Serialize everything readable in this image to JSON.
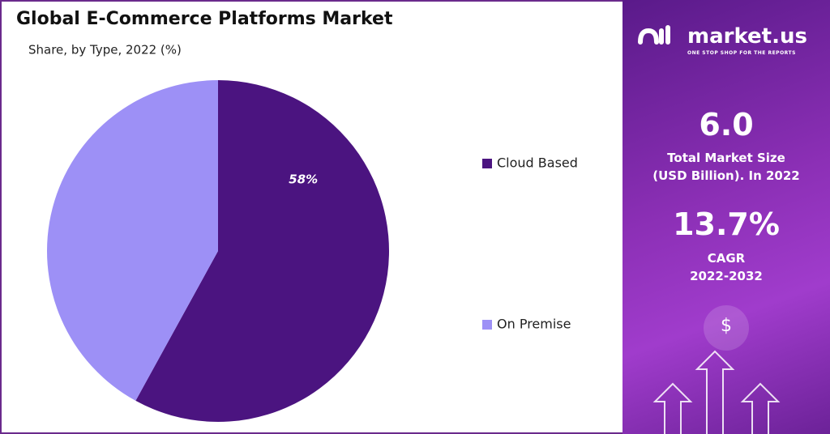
{
  "chart_data": {
    "type": "pie",
    "title": "Global E-Commerce Platforms Market",
    "subtitle": "Share, by Type, 2022 (%)",
    "categories": [
      "Cloud Based",
      "On Premise"
    ],
    "values": [
      58,
      42
    ],
    "value_labels": [
      "58%",
      null
    ],
    "colors": [
      "#4b1480",
      "#9d90f6"
    ],
    "legend": "right"
  },
  "panel": {
    "logo": "market.us",
    "tagline": "ONE STOP SHOP FOR THE REPORTS",
    "market_size": "6.0",
    "market_size_label": [
      "Total Market Size",
      "(USD Billion). In 2022"
    ],
    "cagr": "13.7%",
    "cagr_label": [
      "CAGR",
      "2022-2032"
    ],
    "icon": "$"
  }
}
